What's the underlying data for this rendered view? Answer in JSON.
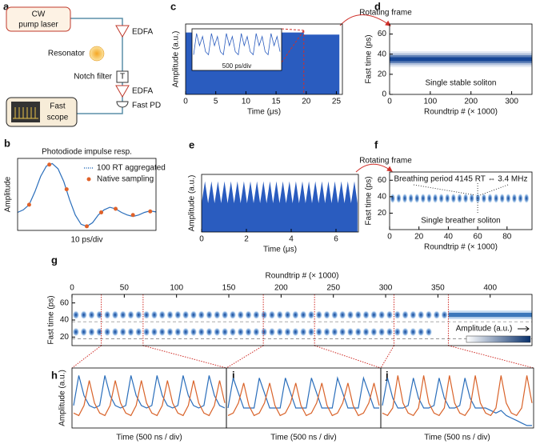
{
  "diagram": {
    "panel": "a",
    "pump": [
      "CW",
      "pump laser"
    ],
    "edfa1": "EDFA",
    "resonator": "Resonator",
    "notch": "Notch filter",
    "notch_symbol": "T",
    "edfa2": "EDFA",
    "pd": "Fast PD",
    "scope": [
      "Fast",
      "scope"
    ]
  },
  "chart_data": [
    {
      "panel": "b",
      "type": "line",
      "title": "Photodiode impulse resp.",
      "xlabel": "10 ps/div",
      "ylabel": "Amplitude",
      "xlim": [
        0,
        24
      ],
      "ylim": [
        -0.3,
        1.1
      ],
      "legend": "upper right",
      "series": [
        {
          "name": "100 RT aggregated",
          "color": "#2a6ebb",
          "x": [
            0,
            1,
            2,
            3,
            4,
            5,
            6,
            7,
            8,
            9,
            10,
            11,
            12,
            13,
            14,
            15,
            16,
            17,
            18,
            19,
            20,
            21,
            22,
            23,
            24
          ],
          "values": [
            0.05,
            0.1,
            0.2,
            0.45,
            0.75,
            0.95,
            1.0,
            0.9,
            0.65,
            0.3,
            0.0,
            -0.18,
            -0.22,
            -0.15,
            0.0,
            0.1,
            0.15,
            0.12,
            0.05,
            0,
            -0.03,
            0,
            0.05,
            0.08,
            0.06
          ]
        },
        {
          "name": "Native sampling",
          "color": "#e0622a",
          "marker": "dot",
          "x": [
            2,
            5.5,
            8.5,
            12,
            14.5,
            17,
            20,
            23
          ],
          "values": [
            0.2,
            0.98,
            0.5,
            -0.22,
            0.05,
            0.12,
            0,
            0.07
          ]
        }
      ]
    },
    {
      "panel": "c",
      "type": "area",
      "xlabel": "Time (μs)",
      "ylabel": "Amplitude (a.u.)",
      "xlim": [
        0,
        26
      ],
      "xticks": [
        0,
        5,
        10,
        15,
        20,
        25
      ],
      "ylim": [
        0,
        1
      ],
      "color": "#2a5cbf",
      "zoom_x": 19.6,
      "x": [
        0,
        19.6,
        19.6,
        25.5
      ],
      "values": [
        0.88,
        0.88,
        0.85,
        0.85
      ],
      "inset": {
        "label": "500 ps/div",
        "values": [
          0.2,
          0.9,
          0.5,
          0.8,
          0.3,
          0.2,
          0.9,
          0.5,
          0.8,
          0.3,
          0.2,
          0.9,
          0.5,
          0.8,
          0.3,
          0.2,
          0.9,
          0.5,
          0.8,
          0.3,
          0.2,
          0.9,
          0.5,
          0.8,
          0.3,
          0.2,
          0.9,
          0.5,
          0.8,
          0.3
        ]
      }
    },
    {
      "panel": "d",
      "type": "heatmap",
      "title": "Rotating frame",
      "annotation": "Single stable soliton",
      "xlabel": "Roundtrip # (× 1000)",
      "ylabel": "Fast time (ps)",
      "xlim": [
        0,
        350
      ],
      "xticks": [
        0,
        100,
        200,
        300
      ],
      "ylim": [
        0,
        70
      ],
      "yticks": [
        0,
        20,
        40,
        60
      ],
      "color": "#0b3d91",
      "y": [
        28,
        30,
        32,
        34,
        36,
        38,
        40,
        42
      ],
      "values": [
        0.1,
        0.3,
        0.65,
        0.95,
        0.95,
        0.65,
        0.3,
        0.1
      ]
    },
    {
      "panel": "e",
      "type": "area",
      "xlabel": "Time (μs)",
      "ylabel": "Amplitude (a.u.)",
      "xlim": [
        0,
        7
      ],
      "xticks": [
        0,
        2,
        4,
        6
      ],
      "ylim": [
        0,
        1
      ],
      "color": "#2a5cbf",
      "x": [
        0,
        0.15,
        0.29,
        0.44,
        0.58,
        0.73,
        0.87,
        1.02,
        1.16,
        1.31,
        1.45,
        1.6,
        1.74,
        1.89,
        2.03,
        2.18,
        2.32,
        2.47,
        2.61,
        2.76,
        2.9,
        3.05,
        3.19,
        3.34,
        3.48,
        3.63,
        3.77,
        3.92,
        4.06,
        4.21,
        4.35,
        4.5,
        4.64,
        4.79,
        4.93,
        5.08,
        5.22,
        5.37,
        5.51,
        5.66,
        5.8,
        5.95,
        6.09,
        6.24,
        6.38,
        6.53,
        6.67,
        6.82,
        6.96
      ],
      "values": [
        0.5,
        0.88,
        0.5,
        0.88,
        0.5,
        0.88,
        0.5,
        0.88,
        0.5,
        0.88,
        0.5,
        0.88,
        0.5,
        0.88,
        0.5,
        0.88,
        0.5,
        0.88,
        0.5,
        0.88,
        0.5,
        0.88,
        0.5,
        0.88,
        0.5,
        0.88,
        0.5,
        0.88,
        0.5,
        0.88,
        0.5,
        0.88,
        0.5,
        0.88,
        0.5,
        0.88,
        0.5,
        0.88,
        0.5,
        0.88,
        0.5,
        0.88,
        0.5,
        0.88,
        0.5,
        0.88,
        0.5,
        0.88,
        0.5
      ]
    },
    {
      "panel": "f",
      "type": "breather",
      "title": "Rotating frame",
      "annotation": "Breathing period 4145 RT ⇔ 3.4 MHz",
      "annotation2": "Single breather soliton",
      "xlabel": "Roundtrip # (× 1000)",
      "ylabel": "Fast time (ps)",
      "xlim": [
        0,
        97
      ],
      "xticks": [
        0,
        20,
        40,
        60,
        80
      ],
      "ylim": [
        0,
        70
      ],
      "yticks": [
        20,
        40,
        60
      ],
      "center": 38,
      "period": 4.145,
      "marker_x": 60
    },
    {
      "panel": "g",
      "type": "breather-map",
      "xaxis": "top",
      "xlabel": "Roundtrip # (× 1000)",
      "ylabel": "Fast time (ps)",
      "colorbar_label": "Amplitude (a.u.)",
      "xlim": [
        0,
        440
      ],
      "xticks": [
        0,
        50,
        100,
        150,
        200,
        250,
        300,
        350,
        400
      ],
      "ylim": [
        10,
        70
      ],
      "yticks": [
        20,
        40,
        60
      ],
      "period": 7.5,
      "series": [
        {
          "center": 46,
          "start": 0,
          "end": 440,
          "stable_from": 360
        },
        {
          "center": 26,
          "start": 0,
          "end": 345
        }
      ],
      "zooms": [
        [
          28,
          68
        ],
        [
          183,
          232
        ],
        [
          308,
          360
        ]
      ]
    },
    {
      "panel": "h",
      "type": "line",
      "xlabel": "Time (500 ns / div)",
      "ylabel": "Amplitude (a.u.)",
      "ylim": [
        -0.1,
        1.1
      ],
      "series": [
        {
          "color": "#2a6ebb",
          "values": [
            0.35,
            0.95,
            0.55,
            0.35,
            0.3,
            0.35,
            0.95,
            0.55,
            0.35,
            0.3,
            0.35,
            0.95,
            0.55,
            0.35,
            0.3,
            0.35,
            0.95,
            0.55,
            0.35,
            0.3,
            0.35,
            0.95,
            0.55,
            0.35,
            0.3,
            0.35,
            0.95,
            0.55,
            0.35,
            0.3
          ]
        },
        {
          "color": "#d9632a",
          "values": [
            0.2,
            0.15,
            0.35,
            0.85,
            0.4,
            0.2,
            0.15,
            0.35,
            0.85,
            0.4,
            0.2,
            0.15,
            0.35,
            0.85,
            0.4,
            0.2,
            0.15,
            0.35,
            0.85,
            0.4,
            0.2,
            0.15,
            0.35,
            0.85,
            0.4,
            0.2,
            0.15,
            0.35,
            0.85,
            0.4
          ]
        }
      ]
    },
    {
      "panel": "i",
      "type": "line",
      "xlabel": "Time (500 ns / div)",
      "ylim": [
        -0.1,
        1.1
      ],
      "series": [
        {
          "color": "#2a6ebb",
          "values": [
            0.3,
            0.9,
            0.6,
            0.3,
            0.3,
            0.3,
            0.9,
            0.6,
            0.3,
            0.3,
            0.3,
            0.9,
            0.6,
            0.3,
            0.3,
            0.3,
            0.9,
            0.6,
            0.3,
            0.3,
            0.3,
            0.9,
            0.6,
            0.3,
            0.3,
            0.3,
            0.9,
            0.6,
            0.3,
            0.3
          ]
        },
        {
          "color": "#d9632a",
          "values": [
            0.15,
            0.2,
            0.4,
            0.8,
            0.35,
            0.15,
            0.2,
            0.4,
            0.8,
            0.35,
            0.15,
            0.2,
            0.4,
            0.8,
            0.35,
            0.15,
            0.2,
            0.4,
            0.8,
            0.35,
            0.15,
            0.2,
            0.4,
            0.8,
            0.35,
            0.15,
            0.2,
            0.4,
            0.8,
            0.35
          ]
        }
      ]
    },
    {
      "panel": "j",
      "type": "line",
      "xlabel": "Time (500 ns / div)",
      "ylim": [
        -0.1,
        1.1
      ],
      "series": [
        {
          "color": "#2a6ebb",
          "values": [
            0.35,
            0.9,
            0.5,
            0.3,
            0.3,
            0.35,
            0.9,
            0.5,
            0.3,
            0.3,
            0.35,
            0.9,
            0.5,
            0.3,
            0.3,
            0.35,
            0.9,
            0.5,
            0.3,
            0.3,
            0.3,
            0.25,
            0.2,
            0.25,
            0.15,
            0.1,
            0.05,
            0,
            -0.05,
            -0.05
          ]
        },
        {
          "color": "#d9632a",
          "values": [
            0.2,
            0.15,
            0.3,
            0.95,
            0.4,
            0.2,
            0.15,
            0.3,
            0.95,
            0.4,
            0.2,
            0.15,
            0.3,
            0.95,
            0.4,
            0.2,
            0.15,
            0.3,
            0.95,
            0.4,
            0.2,
            0.15,
            0.3,
            0.95,
            0.4,
            0.2,
            0.15,
            0.3,
            0.95,
            0.4
          ]
        }
      ]
    }
  ]
}
